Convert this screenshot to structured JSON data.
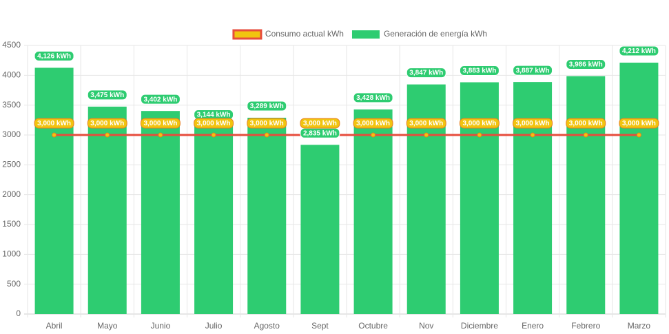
{
  "chart_data": {
    "type": "bar",
    "categories": [
      "Abril",
      "Mayo",
      "Junio",
      "Julio",
      "Agosto",
      "Sept",
      "Octubre",
      "Nov",
      "Diciembre",
      "Enero",
      "Febrero",
      "Marzo"
    ],
    "series": [
      {
        "name": "Consumo actual kWh",
        "type": "line",
        "color": "#e74c3c",
        "point_color": "#f1c40f",
        "values": [
          3000,
          3000,
          3000,
          3000,
          3000,
          3000,
          3000,
          3000,
          3000,
          3000,
          3000,
          3000
        ],
        "value_labels": [
          "3,000 kWh",
          "3,000 kWh",
          "3,000 kWh",
          "3,000 kWh",
          "3,000 kWh",
          "3,000 kWh",
          "3,000 kWh",
          "3,000 kWh",
          "3,000 kWh",
          "3,000 kWh",
          "3,000 kWh",
          "3,000 kWh"
        ]
      },
      {
        "name": "Generación de energía kWh",
        "type": "bar",
        "color": "#2ecc71",
        "values": [
          4126,
          3475,
          3402,
          3144,
          3289,
          2835,
          3428,
          3847,
          3883,
          3887,
          3986,
          4212
        ],
        "value_labels": [
          "4,126 kWh",
          "3,475 kWh",
          "3,402 kWh",
          "3,144 kWh",
          "3,289 kWh",
          "2,835 kWh",
          "3,428 kWh",
          "3,847 kWh",
          "3,883 kWh",
          "3,887 kWh",
          "3,986 kWh",
          "4,212 kWh"
        ]
      }
    ],
    "ylim": [
      0,
      4500
    ],
    "yticks": [
      0,
      500,
      1000,
      1500,
      2000,
      2500,
      3000,
      3500,
      4000,
      4500
    ],
    "grid": true
  }
}
